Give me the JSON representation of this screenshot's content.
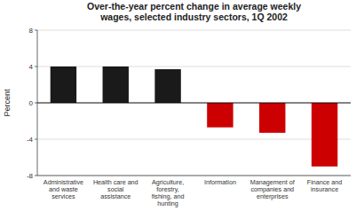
{
  "chart_data": {
    "type": "bar",
    "title": "Over-the-year percent change in average weekly\nwages, selected industry sectors, 1Q 2002",
    "categories": [
      "Administrative\nand waste\nservices",
      "Health care and\nsocial\nassistance",
      "Agriculture,\nforestry,\nfishing, and\nhunting",
      "Information",
      "Management of\ncompanies and\nenterprises",
      "Finance and\ninsurance"
    ],
    "values": [
      4.0,
      4.0,
      3.7,
      -2.7,
      -3.3,
      -7.0
    ],
    "colors": [
      "#1a1a1a",
      "#1a1a1a",
      "#1a1a1a",
      "#cc0000",
      "#cc0000",
      "#cc0000"
    ],
    "ylabel": "Percent",
    "ylim": [
      -8,
      8
    ],
    "yticks": [
      -8,
      -4,
      0,
      4,
      8
    ],
    "grid": true
  }
}
